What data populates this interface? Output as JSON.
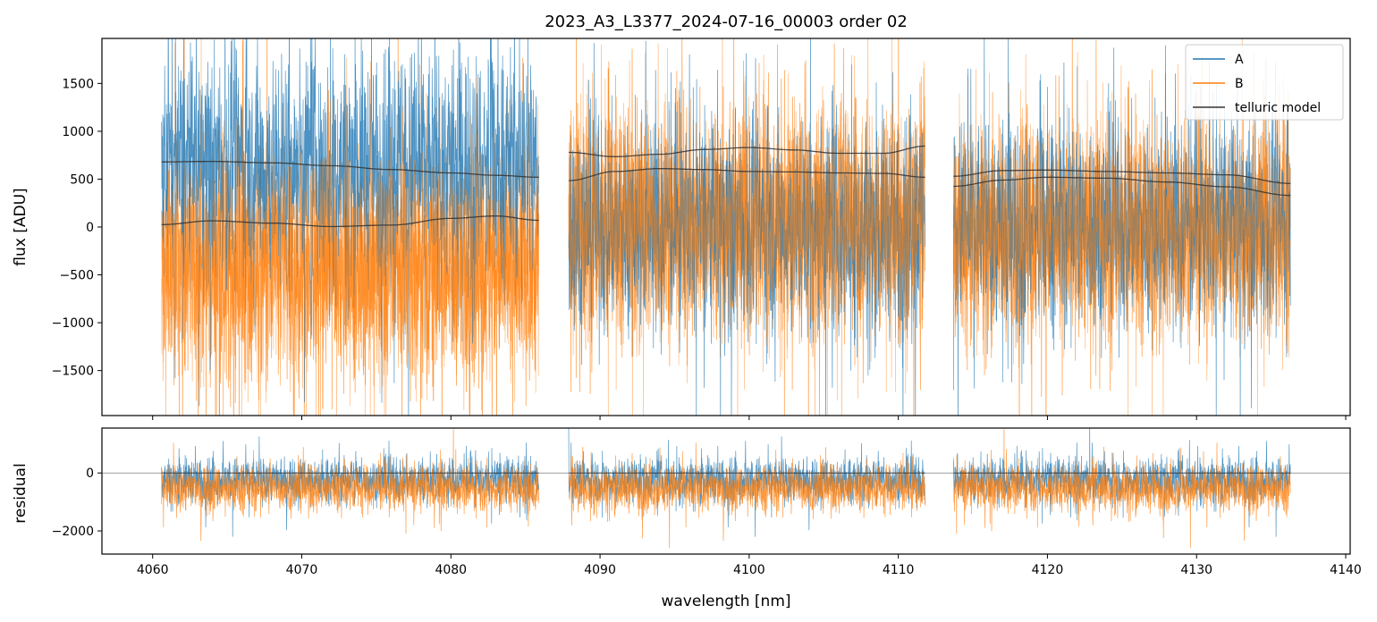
{
  "chart_data": {
    "type": "line",
    "title": "2023_A3_L3377_2024-07-16_00003  order 02",
    "xlabel": "wavelength [nm]",
    "xlim": [
      4056.6,
      4140.3
    ],
    "x_ticks": [
      4060,
      4070,
      4080,
      4090,
      4100,
      4110,
      4120,
      4130,
      4140
    ],
    "x_tick_labels": [
      "4060",
      "4070",
      "4080",
      "4090",
      "4100",
      "4110",
      "4120",
      "4130",
      "4140"
    ],
    "colors": {
      "A": "#1f77b4",
      "B": "#ff7f0e",
      "telluric": "#333333",
      "zero_line": "#7f7f7f"
    },
    "legend": {
      "placement": "upper right",
      "entries": [
        {
          "label": "A",
          "color": "#1f77b4"
        },
        {
          "label": "B",
          "color": "#ff7f0e"
        },
        {
          "label": "telluric model",
          "color": "#333333"
        }
      ]
    },
    "segments": [
      {
        "x_start": 4060.6,
        "x_end": 4085.9
      },
      {
        "x_start": 4087.9,
        "x_end": 4111.8
      },
      {
        "x_start": 4113.7,
        "x_end": 4136.3
      }
    ],
    "panels": [
      {
        "id": "flux",
        "ylabel": "flux [ADU]",
        "ylim": [
          -1970,
          1970
        ],
        "y_ticks": [
          -1500,
          -1000,
          -500,
          0,
          500,
          1000,
          1500
        ],
        "y_tick_labels": [
          "−1500",
          "−1000",
          "−500",
          "0",
          "500",
          "1000",
          "1500"
        ],
        "series": [
          {
            "name": "A",
            "segment_levels": [
              [
                650,
                520,
                1500
              ],
              [
                20,
                600,
                1400
              ],
              [
                40,
                560,
                1350
              ]
            ]
          },
          {
            "name": "B",
            "segment_levels": [
              [
                -400,
                600,
                1450
              ],
              [
                60,
                620,
                1450
              ],
              [
                -30,
                580,
                1350
              ]
            ]
          },
          {
            "name": "telluric model",
            "curves": [
              {
                "x": [
                  4060.6,
                  4064,
                  4068,
                  4072,
                  4076,
                  4080,
                  4083,
                  4085.9
                ],
                "y": [
                  680,
                  685,
                  670,
                  640,
                  600,
                  565,
                  540,
                  520
                ]
              },
              {
                "x": [
                  4060.6,
                  4064,
                  4068,
                  4072,
                  4076,
                  4080,
                  4083,
                  4085.9
                ],
                "y": [
                  25,
                  65,
                  40,
                  5,
                  20,
                  90,
                  115,
                  70
                ]
              },
              {
                "x": [
                  4087.9,
                  4091,
                  4094,
                  4097,
                  4100,
                  4103,
                  4106,
                  4109,
                  4111.8
                ],
                "y": [
                  780,
                  735,
                  760,
                  810,
                  830,
                  805,
                  770,
                  770,
                  845
                ]
              },
              {
                "x": [
                  4087.9,
                  4091,
                  4094,
                  4097,
                  4100,
                  4103,
                  4106,
                  4109,
                  4111.8
                ],
                "y": [
                  485,
                  580,
                  610,
                  600,
                  580,
                  575,
                  565,
                  560,
                  520
                ]
              },
              {
                "x": [
                  4113.7,
                  4117,
                  4120,
                  4124,
                  4128,
                  4132,
                  4136.3
                ],
                "y": [
                  530,
                  590,
                  595,
                  580,
                  565,
                  545,
                  455
                ]
              },
              {
                "x": [
                  4113.7,
                  4117,
                  4120,
                  4124,
                  4128,
                  4132,
                  4136.3
                ],
                "y": [
                  425,
                  490,
                  520,
                  510,
                  470,
                  420,
                  330
                ]
              }
            ]
          }
        ]
      },
      {
        "id": "residual",
        "ylabel": "residual",
        "ylim": [
          -2800,
          1550
        ],
        "y_ticks": [
          -2000,
          0
        ],
        "y_tick_labels": [
          "−2000",
          "0"
        ],
        "reference_line": 0,
        "series": [
          {
            "name": "A",
            "center": -230,
            "spread": 520,
            "spike": 1300
          },
          {
            "name": "B",
            "center": -520,
            "spread": 560,
            "spike": 1350
          }
        ]
      }
    ]
  }
}
